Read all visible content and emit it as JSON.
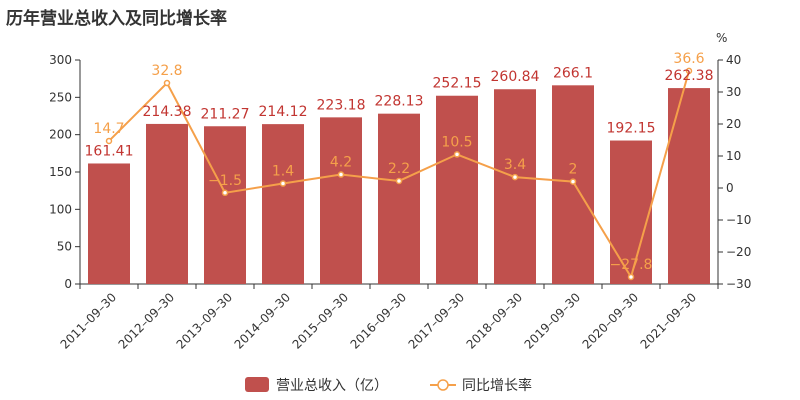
{
  "title": "历年营业总收入及同比增长率",
  "colors": {
    "bar": "#c0504d",
    "line": "#f5a04a",
    "axis": "#333333",
    "bar_label": "#c23531"
  },
  "chart_data": {
    "type": "bar",
    "categories": [
      "2011-09-30",
      "2012-09-30",
      "2013-09-30",
      "2014-09-30",
      "2015-09-30",
      "2016-09-30",
      "2017-09-30",
      "2018-09-30",
      "2019-09-30",
      "2020-09-30",
      "2021-09-30"
    ],
    "series": [
      {
        "name": "营业总收入（亿）",
        "type": "bar",
        "axis": "left",
        "values": [
          161.41,
          214.38,
          211.27,
          214.12,
          223.18,
          228.13,
          252.15,
          260.84,
          266.1,
          192.15,
          262.38
        ],
        "labels": [
          "161.41",
          "214.38",
          "211.27",
          "214.12",
          "223.18",
          "228.13",
          "252.15",
          "260.84",
          "266.1",
          "192.15",
          "262.38"
        ]
      },
      {
        "name": "同比增长率",
        "type": "line",
        "axis": "right",
        "values": [
          14.7,
          32.8,
          -1.5,
          1.4,
          4.2,
          2.2,
          10.5,
          3.4,
          2,
          -27.8,
          36.6
        ],
        "labels": [
          "14.7",
          "32.8",
          "-1.5",
          "1.4",
          "4.2",
          "2.2",
          "10.5",
          "3.4",
          "2",
          "-27.8",
          "36.6"
        ]
      }
    ],
    "y_left": {
      "min": 0,
      "max": 300,
      "ticks": [
        "0",
        "50",
        "100",
        "150",
        "200",
        "250",
        "300"
      ]
    },
    "y_right": {
      "min": -30,
      "max": 40,
      "label": "%",
      "ticks": [
        "-30",
        "-20",
        "-10",
        "0",
        "10",
        "20",
        "30",
        "40"
      ]
    },
    "legend": {
      "position": "bottom-center",
      "items": [
        "营业总收入（亿）",
        "同比增长率"
      ]
    },
    "grid": false
  }
}
